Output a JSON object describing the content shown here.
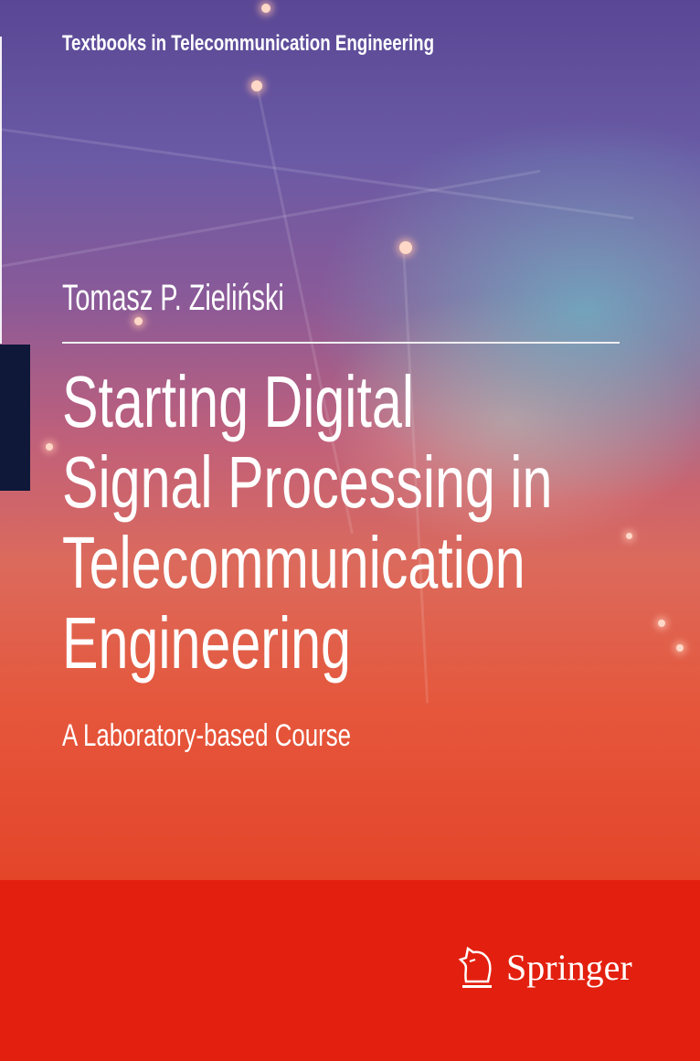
{
  "series_title": "Textbooks in Telecommunication Engineering",
  "author": "Tomasz P. Zieliński",
  "title_lines": [
    "Starting Digital",
    "Signal Processing in",
    "Telecommunication",
    "Engineering"
  ],
  "subtitle": "A Laboratory-based Course",
  "publisher": {
    "name": "Springer",
    "logo_icon": "springer-knight-icon"
  },
  "colors": {
    "top": "#5a4795",
    "middle_cyan": "#6eafc3",
    "lower": "#e4452a",
    "band": "#e3200f",
    "accent_bar": "#0f1838"
  }
}
